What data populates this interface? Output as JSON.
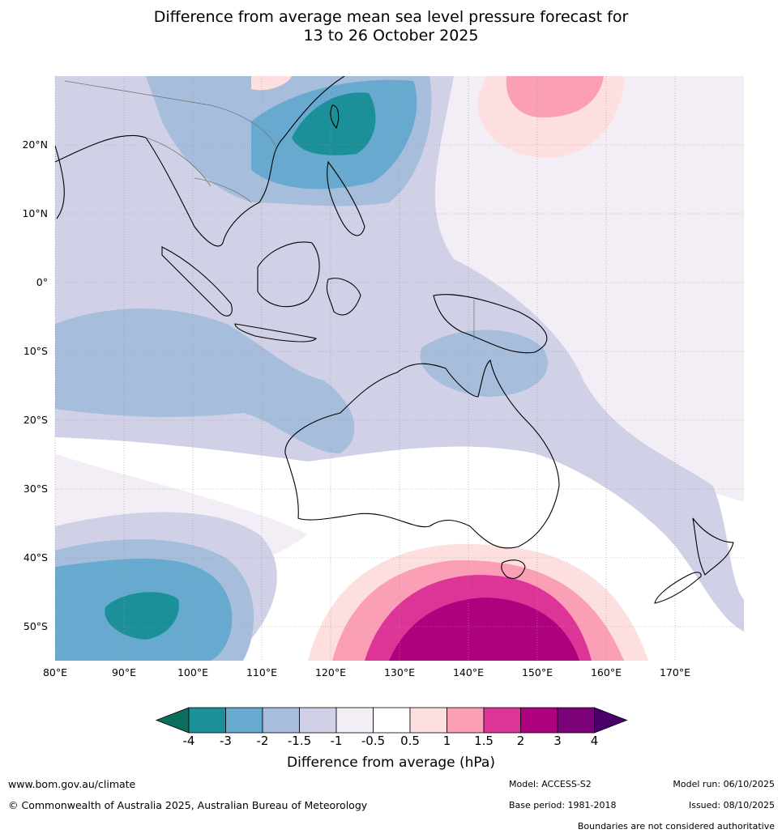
{
  "title": {
    "line1": "Difference from average mean sea level pressure forecast for",
    "line2": "13 to 26 October 2025"
  },
  "map": {
    "lat_labels": [
      "20°N",
      "10°N",
      "0°",
      "10°S",
      "20°S",
      "30°S",
      "40°S",
      "50°S"
    ],
    "lon_labels": [
      "80°E",
      "90°E",
      "100°E",
      "110°E",
      "120°E",
      "130°E",
      "140°E",
      "150°E",
      "160°E",
      "170°E"
    ]
  },
  "colorbar": {
    "title": "Difference from average (hPa)",
    "tick_labels": [
      "-4",
      "-3",
      "-2",
      "-1.5",
      "-1",
      "-0.5",
      "0.5",
      "1",
      "1.5",
      "2",
      "3",
      "4"
    ],
    "colors": [
      "#0b6e5e",
      "#1c9099",
      "#67a9cf",
      "#a6bddb",
      "#d0d1e6",
      "#f3eef6",
      "#ffffff",
      "#fedfdf",
      "#fa9fb5",
      "#dd3497",
      "#ae017e",
      "#7a0177",
      "#49006a"
    ]
  },
  "footer": {
    "website": "www.bom.gov.au/climate",
    "copyright": "© Commonwealth of Australia 2025, Australian Bureau of Meteorology",
    "model": "Model: ACCESS-S2",
    "base_period": "Base period: 1981-2018",
    "model_run": "Model run: 06/10/2025",
    "issued": "Issued: 08/10/2025",
    "disclaimer": "Boundaries are not considered authoritative"
  }
}
